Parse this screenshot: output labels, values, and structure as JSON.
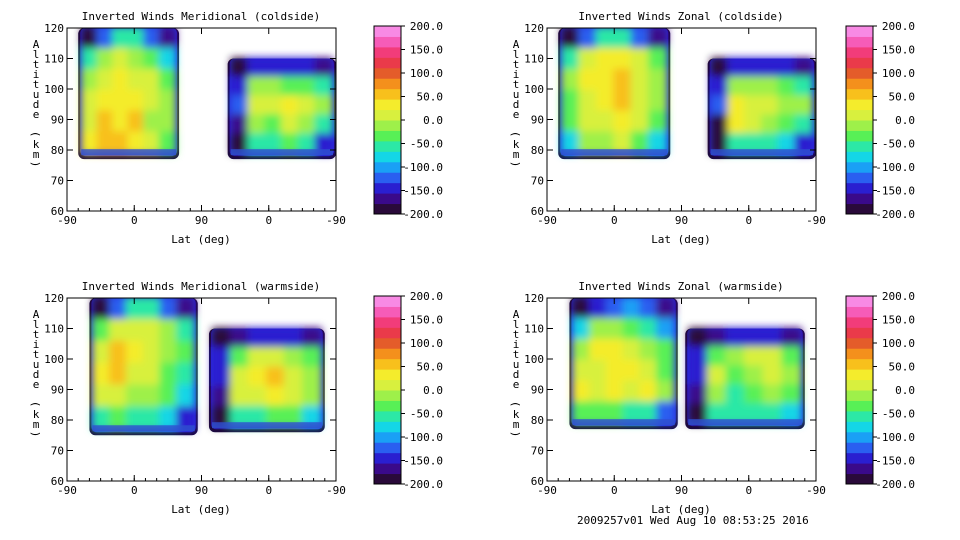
{
  "footer": "2009257v01 Wed Aug 10 08:53:25 2016",
  "chart_data": [
    {
      "type": "heatmap",
      "title": "Inverted Winds Meridional (coldside)",
      "xlabel": "Lat (deg)",
      "ylabel": "Altitude (km)",
      "xticks": [
        "-90",
        "0",
        "90",
        "0",
        "-90"
      ],
      "yticks": [
        "60",
        "70",
        "80",
        "90",
        "100",
        "110",
        "120"
      ],
      "ylim": [
        60,
        120
      ],
      "regions": [
        {
          "xmin": -75,
          "xmax": 60,
          "ymin": 77,
          "ymax": 120,
          "values": [
            [
              -180,
              -120,
              -60,
              -60,
              -120,
              -160
            ],
            [
              -60,
              -20,
              10,
              -10,
              -30,
              -80
            ],
            [
              -20,
              20,
              30,
              20,
              0,
              -40
            ],
            [
              0,
              40,
              25,
              40,
              10,
              -20
            ],
            [
              20,
              50,
              40,
              60,
              -10,
              -20
            ],
            [
              40,
              60,
              50,
              30,
              20,
              -30
            ]
          ]
        },
        {
          "xmin": 125,
          "xmax": 270,
          "ymin": 77,
          "ymax": 110,
          "values": [
            [
              -180,
              -150,
              -150,
              -150,
              -150,
              -160
            ],
            [
              -150,
              -10,
              -20,
              -30,
              -40,
              -60
            ],
            [
              -130,
              10,
              20,
              30,
              10,
              -20
            ],
            [
              -160,
              -10,
              -30,
              10,
              -10,
              -50
            ],
            [
              -180,
              -50,
              -60,
              -40,
              -50,
              -140
            ]
          ]
        }
      ]
    },
    {
      "type": "heatmap",
      "title": "Inverted Winds Zonal (coldside)",
      "xlabel": "Lat (deg)",
      "ylabel": "Altitude (km)",
      "xticks": [
        "-90",
        "0",
        "90",
        "0",
        "-90"
      ],
      "yticks": [
        "60",
        "70",
        "80",
        "90",
        "100",
        "110",
        "120"
      ],
      "ylim": [
        60,
        120
      ],
      "regions": [
        {
          "xmin": -75,
          "xmax": 75,
          "ymin": 77,
          "ymax": 120,
          "values": [
            [
              -180,
              -120,
              -60,
              -60,
              -120,
              -160
            ],
            [
              -60,
              20,
              40,
              30,
              10,
              -40
            ],
            [
              -20,
              30,
              40,
              50,
              20,
              -20
            ],
            [
              -30,
              10,
              30,
              60,
              20,
              -10
            ],
            [
              -40,
              0,
              20,
              40,
              0,
              -30
            ],
            [
              -80,
              -20,
              -10,
              0,
              -40,
              -80
            ]
          ]
        },
        {
          "xmin": 125,
          "xmax": 270,
          "ymin": 77,
          "ymax": 110,
          "values": [
            [
              -180,
              -150,
              -150,
              -150,
              -150,
              -160
            ],
            [
              -150,
              -20,
              -10,
              -20,
              -30,
              -50
            ],
            [
              -120,
              30,
              20,
              0,
              -10,
              -20
            ],
            [
              -180,
              40,
              10,
              -20,
              -40,
              -50
            ],
            [
              -180,
              -60,
              -50,
              -60,
              -70,
              -140
            ]
          ]
        }
      ]
    },
    {
      "type": "heatmap",
      "title": "Inverted Winds Meridional (warmside)",
      "xlabel": "Lat (deg)",
      "ylabel": "Altitude (km)",
      "xticks": [
        "-90",
        "0",
        "90",
        "0",
        "-90"
      ],
      "yticks": [
        "60",
        "70",
        "80",
        "90",
        "100",
        "110",
        "120"
      ],
      "ylim": [
        60,
        120
      ],
      "regions": [
        {
          "xmin": -60,
          "xmax": 85,
          "ymin": 75,
          "ymax": 120,
          "values": [
            [
              -180,
              -120,
              -60,
              -60,
              -120,
              -160
            ],
            [
              -40,
              20,
              10,
              0,
              -20,
              -60
            ],
            [
              20,
              60,
              30,
              10,
              -10,
              -40
            ],
            [
              30,
              50,
              20,
              0,
              -30,
              -50
            ],
            [
              0,
              10,
              -10,
              -20,
              -40,
              -70
            ],
            [
              -60,
              -40,
              -50,
              -60,
              -80,
              -140
            ]
          ]
        },
        {
          "xmin": 100,
          "xmax": 255,
          "ymin": 76,
          "ymax": 110,
          "values": [
            [
              -180,
              -170,
              -150,
              -150,
              -150,
              -160
            ],
            [
              -150,
              -30,
              0,
              10,
              -10,
              -40
            ],
            [
              -150,
              10,
              30,
              50,
              20,
              -20
            ],
            [
              -160,
              0,
              20,
              40,
              10,
              -10
            ],
            [
              -180,
              -60,
              -50,
              -40,
              -40,
              -80
            ]
          ]
        }
      ]
    },
    {
      "type": "heatmap",
      "title": "Inverted Winds Zonal (warmside)",
      "xlabel": "Lat (deg)",
      "ylabel": "Altitude (km)",
      "xticks": [
        "-90",
        "0",
        "90",
        "0",
        "-90"
      ],
      "yticks": [
        "60",
        "70",
        "80",
        "90",
        "100",
        "110",
        "120"
      ],
      "ylim": [
        60,
        120
      ],
      "regions": [
        {
          "xmin": -60,
          "xmax": 85,
          "ymin": 77,
          "ymax": 120,
          "values": [
            [
              -180,
              -150,
              -120,
              -100,
              -120,
              -160
            ],
            [
              -80,
              -20,
              -10,
              -40,
              -60,
              -100
            ],
            [
              -20,
              30,
              40,
              20,
              -20,
              -40
            ],
            [
              0,
              20,
              40,
              30,
              0,
              -30
            ],
            [
              30,
              20,
              40,
              20,
              30,
              -10
            ],
            [
              -40,
              -30,
              -40,
              -50,
              -60,
              -120
            ]
          ]
        },
        {
          "xmin": 95,
          "xmax": 255,
          "ymin": 77,
          "ymax": 110,
          "values": [
            [
              -180,
              -170,
              -150,
              -150,
              -150,
              -160
            ],
            [
              -150,
              -30,
              -20,
              10,
              0,
              -30
            ],
            [
              -150,
              0,
              -40,
              -20,
              20,
              -10
            ],
            [
              -160,
              -20,
              -60,
              -40,
              -10,
              -30
            ],
            [
              -180,
              -60,
              -60,
              -50,
              -50,
              -80
            ]
          ]
        }
      ]
    }
  ],
  "colorbar": {
    "labels": [
      "200.0",
      "150.0",
      "100.0",
      "50.0",
      "0.0",
      "-50.0",
      "-100.0",
      "-150.0",
      "-200.0"
    ],
    "range": [
      -200,
      200
    ],
    "colors": [
      "#2a0a3a",
      "#3a0a8a",
      "#2a1fd0",
      "#2a5ff0",
      "#1aa0f5",
      "#14d6e6",
      "#2ce8a6",
      "#58f056",
      "#9ef04a",
      "#d8f03e",
      "#f4ec2c",
      "#f8c01c",
      "#f4901c",
      "#e45c2a",
      "#ea3a4a",
      "#f23c7a",
      "#f65cb8",
      "#f88ae4"
    ]
  }
}
